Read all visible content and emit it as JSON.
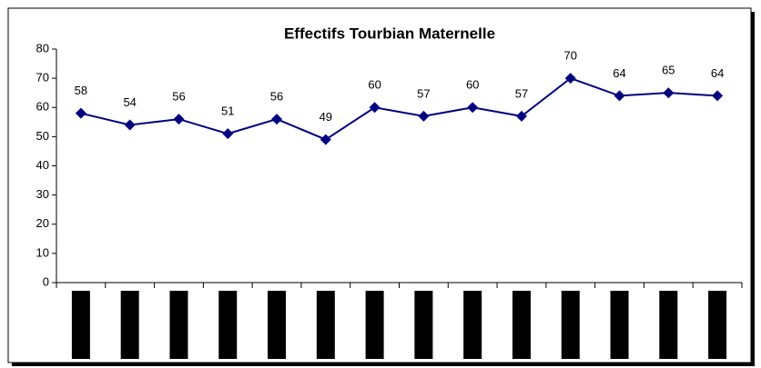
{
  "chart_data": {
    "type": "line",
    "title": "Effectifs Tourbian Maternelle",
    "categories": [
      null,
      null,
      null,
      null,
      null,
      null,
      null,
      null,
      null,
      null,
      null,
      null,
      null,
      null
    ],
    "series": [
      {
        "name": "Effectifs",
        "color": "#000080",
        "values": [
          58,
          54,
          56,
          51,
          56,
          49,
          60,
          57,
          60,
          57,
          70,
          64,
          65,
          64
        ]
      }
    ],
    "ylim": [
      0,
      80
    ],
    "yticks": [
      0,
      10,
      20,
      30,
      40,
      50,
      60,
      70,
      80
    ],
    "grid": false,
    "legend": false
  }
}
